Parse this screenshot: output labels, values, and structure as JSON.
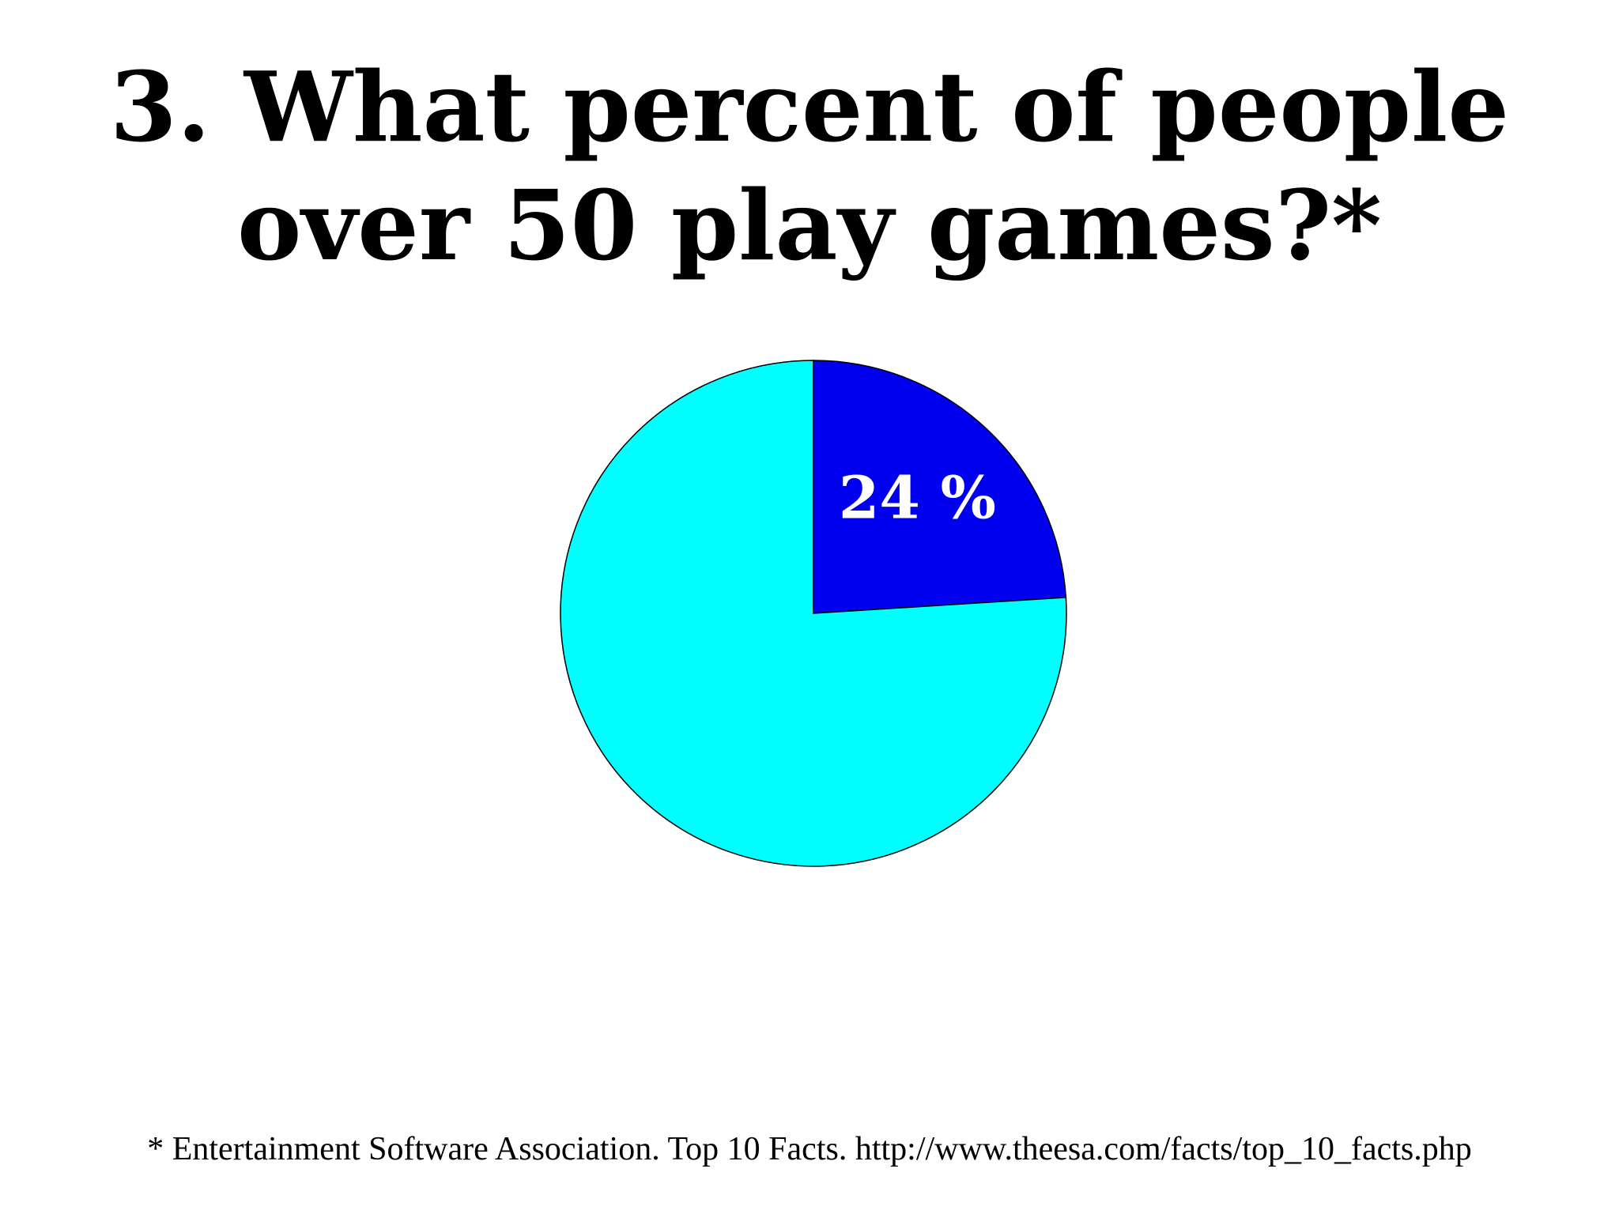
{
  "chart_data": {
    "type": "pie",
    "title": "3. What percent of people over 50 play games?*",
    "values": [
      24,
      76
    ],
    "value_labels": [
      "24 %",
      null
    ],
    "colors": [
      "#0000ee",
      "#00ffff"
    ],
    "note": "* Entertainment Software Association. Top 10 Facts. http://www.theesa.com/facts/top_10_facts.php"
  }
}
